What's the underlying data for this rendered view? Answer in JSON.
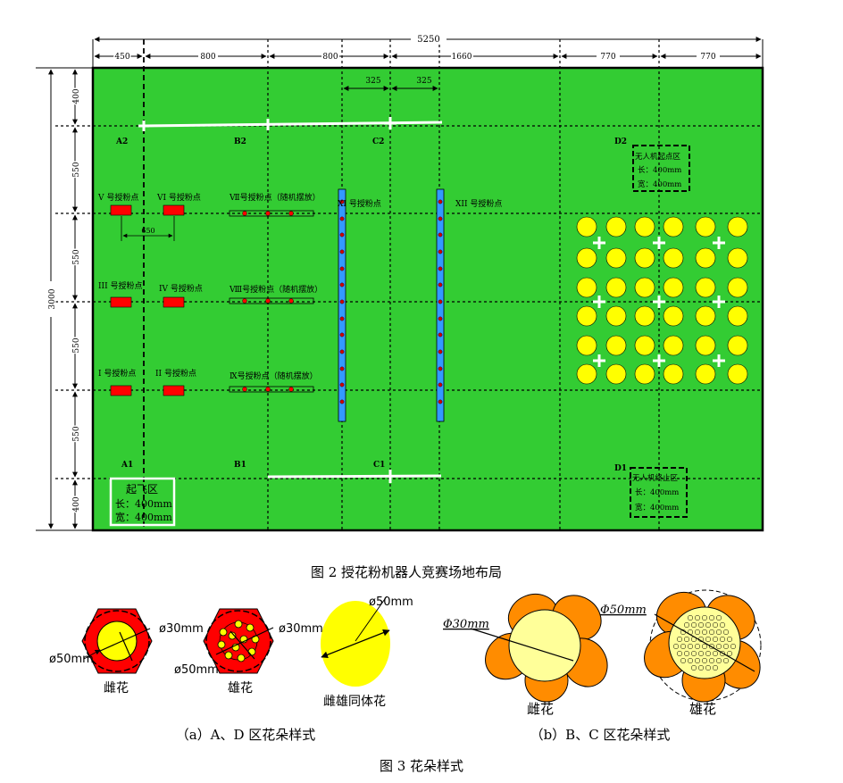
{
  "dims": {
    "total": "5250",
    "top": [
      "450",
      "800",
      "800",
      "1660",
      "770",
      "770"
    ],
    "sub": [
      "325",
      "325"
    ],
    "side_total": "3000",
    "side": [
      "400",
      "550",
      "550",
      "550",
      "550",
      "400"
    ],
    "gap_650": "650"
  },
  "zones": {
    "A2": "A2",
    "B2": "B2",
    "C2": "C2",
    "D2": "D2",
    "A1": "A1",
    "B1": "B1",
    "C1": "C1",
    "D1": "D1"
  },
  "points": {
    "p5": "V 号授粉点",
    "p6": "VI 号授粉点",
    "p7": "Ⅶ号授粉点（随机摆放）",
    "p3": "III 号授粉点",
    "p4": "IV 号授粉点",
    "p8": "Ⅷ号授粉点（随机摆放）",
    "p1": "I 号授粉点",
    "p2": "II 号授粉点",
    "p9": "Ⅸ号授粉点（随机摆放）",
    "p11": "XI 号授粉点",
    "p12": "XII 号授粉点"
  },
  "boxes": {
    "start": {
      "title": "起飞区",
      "len": "长：400mm",
      "wid": "宽：400mm"
    },
    "drone_start": {
      "title": "无人机起点区",
      "len": "长：400mm",
      "wid": "宽：400mm"
    },
    "drone_end": {
      "title": "无人机终止区",
      "len": "长：400mm",
      "wid": "宽：400mm"
    }
  },
  "captions": {
    "fig2": "图 2  授花粉机器人竞赛场地布局",
    "fig3": "图 3  花朵样式",
    "a": "（a）A、D 区花朵样式",
    "b": "（b）B、C 区花朵样式"
  },
  "flowers": {
    "female_a": "雌花",
    "male_a": "雄花",
    "both": "雌雄同体花",
    "female_b": "雌花",
    "male_b": "雄花",
    "d30": "ø30mm",
    "d50": "ø50mm",
    "phi30": "Φ30mm",
    "phi50": "Φ50mm"
  },
  "colors": {
    "field": "#33cc33",
    "red": "#ff0000",
    "yellow": "#ffff00",
    "orange": "#ff8c00",
    "lightyellow": "#ffff99",
    "blue": "#3399ff"
  }
}
